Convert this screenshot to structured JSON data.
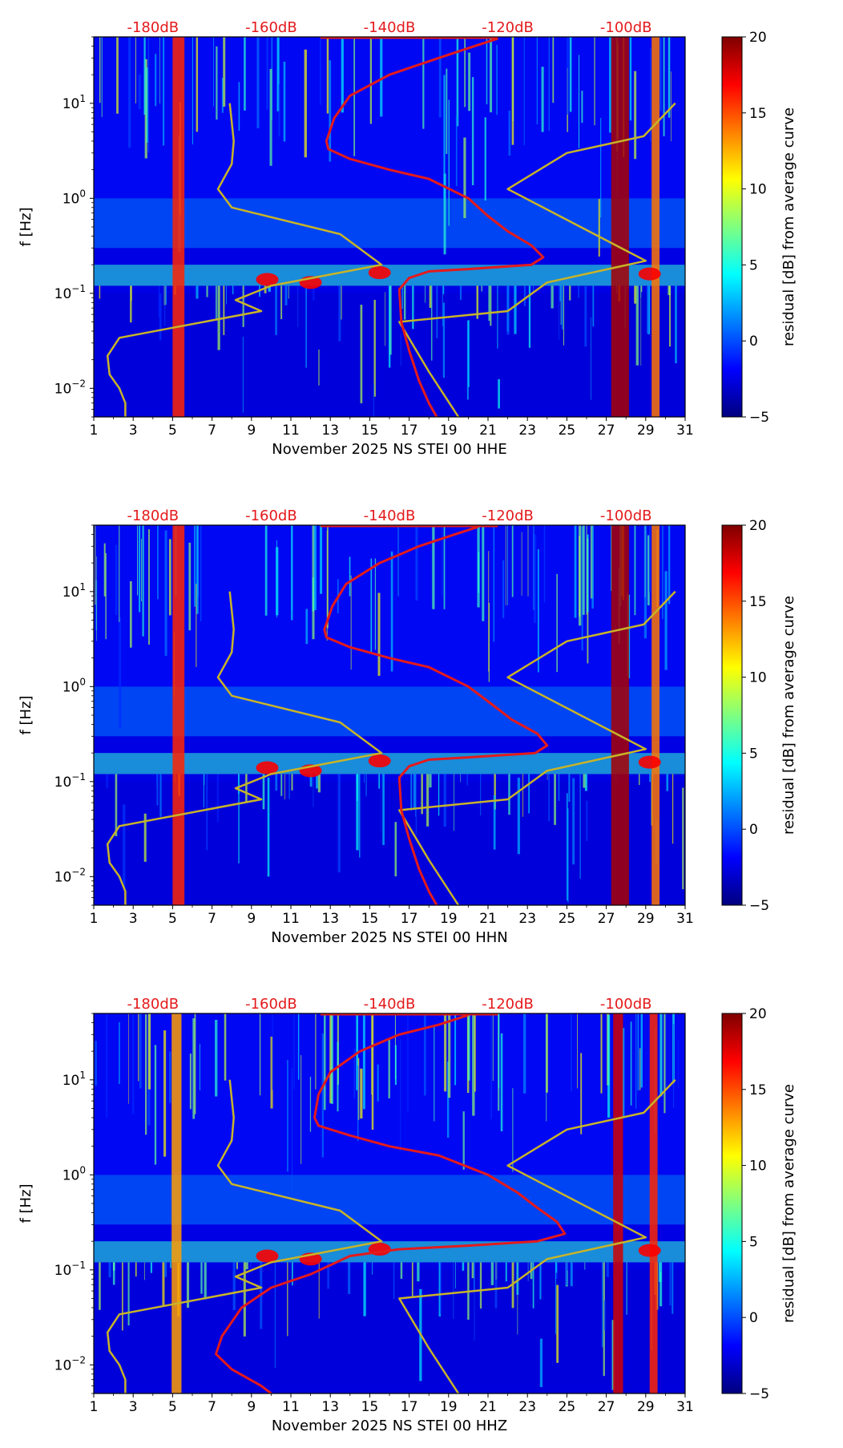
{
  "colors": {
    "noise_model": "#c8b428",
    "median_psd": "#e41a1c",
    "db_labels": "#e41a1c",
    "frame": "#000000",
    "cmap": [
      "#00007f",
      "#0000ff",
      "#007fff",
      "#00ffff",
      "#7fff7f",
      "#ffff00",
      "#ff7f00",
      "#ff0000",
      "#7f0000"
    ]
  },
  "chart_data": [
    {
      "type": "heatmap",
      "title": "",
      "xlabel": "November 2025 NS STEI 00 HHE",
      "ylabel": "f [Hz]",
      "xlim": [
        1,
        31
      ],
      "xticks": [
        1,
        3,
        5,
        7,
        9,
        11,
        13,
        15,
        17,
        19,
        21,
        23,
        25,
        27,
        29,
        31
      ],
      "ylim": [
        0.005,
        50
      ],
      "yscale": "log",
      "yticks": [
        {
          "value": 0.01,
          "base": "10",
          "exp": "−2"
        },
        {
          "value": 0.1,
          "base": "10",
          "exp": "−1"
        },
        {
          "value": 1,
          "base": "10",
          "exp": "0"
        },
        {
          "value": 10,
          "base": "10",
          "exp": "1"
        }
      ],
      "top_labels": [
        {
          "x": 4.0,
          "text": "-180dB"
        },
        {
          "x": 10.0,
          "text": "-160dB"
        },
        {
          "x": 16.0,
          "text": "-140dB"
        },
        {
          "x": 22.0,
          "text": "-120dB"
        },
        {
          "x": 28.0,
          "text": "-100dB"
        }
      ],
      "colorbar": {
        "label": "residual [dB] from average curve",
        "min": -5,
        "max": 20,
        "ticks": [
          -5,
          0,
          5,
          10,
          15,
          20
        ]
      },
      "strong_columns": [
        {
          "x": 5.3,
          "w": 0.6,
          "v": 16
        },
        {
          "x": 27.7,
          "w": 0.9,
          "v": 19
        },
        {
          "x": 29.5,
          "w": 0.4,
          "v": 14
        }
      ],
      "series": [
        {
          "name": "noise model (yellow)",
          "points": [
            [
              7.9,
              10
            ],
            [
              8.1,
              4
            ],
            [
              8.0,
              2.3
            ],
            [
              7.3,
              1.25
            ],
            [
              8.0,
              0.8
            ],
            [
              13.5,
              0.42
            ],
            [
              15.6,
              0.2
            ],
            [
              10.0,
              0.12
            ],
            [
              8.2,
              0.085
            ],
            [
              9.5,
              0.065
            ],
            [
              2.3,
              0.034
            ],
            [
              1.7,
              0.022
            ],
            [
              1.8,
              0.014
            ],
            [
              2.3,
              0.01
            ],
            [
              2.6,
              0.007
            ],
            [
              2.6,
              0.005
            ]
          ]
        },
        {
          "name": "noise model (yellow)",
          "points": [
            [
              30.5,
              10
            ],
            [
              28.9,
              4.5
            ],
            [
              25.0,
              3.0
            ],
            [
              22.0,
              1.25
            ],
            [
              29.0,
              0.22
            ],
            [
              24.0,
              0.13
            ],
            [
              22.0,
              0.065
            ],
            [
              16.5,
              0.05
            ],
            [
              18.0,
              0.015
            ],
            [
              19.5,
              0.005
            ]
          ]
        },
        {
          "name": "median PSD (red)",
          "points": [
            [
              21.5,
              48
            ],
            [
              20.0,
              38
            ],
            [
              18.5,
              30
            ],
            [
              16.0,
              20
            ],
            [
              14.0,
              12
            ],
            [
              13.2,
              7
            ],
            [
              12.8,
              4
            ],
            [
              12.9,
              3.3
            ],
            [
              14.0,
              2.6
            ],
            [
              16.0,
              2.0
            ],
            [
              18.0,
              1.6
            ],
            [
              20.0,
              1.0
            ],
            [
              21.0,
              0.65
            ],
            [
              22.0,
              0.45
            ],
            [
              23.2,
              0.32
            ],
            [
              23.8,
              0.24
            ],
            [
              23.2,
              0.2
            ],
            [
              20.0,
              0.18
            ],
            [
              18.0,
              0.17
            ],
            [
              17.0,
              0.145
            ],
            [
              16.5,
              0.11
            ],
            [
              16.6,
              0.05
            ],
            [
              17.0,
              0.025
            ],
            [
              17.5,
              0.012
            ],
            [
              18.0,
              0.007
            ],
            [
              18.4,
              0.005
            ]
          ]
        }
      ]
    },
    {
      "type": "heatmap",
      "title": "",
      "xlabel": "November 2025 NS STEI 00 HHN",
      "ylabel": "f [Hz]",
      "xlim": [
        1,
        31
      ],
      "xticks": [
        1,
        3,
        5,
        7,
        9,
        11,
        13,
        15,
        17,
        19,
        21,
        23,
        25,
        27,
        29,
        31
      ],
      "ylim": [
        0.005,
        50
      ],
      "yscale": "log",
      "yticks": [
        {
          "value": 0.01,
          "base": "10",
          "exp": "−2"
        },
        {
          "value": 0.1,
          "base": "10",
          "exp": "−1"
        },
        {
          "value": 1,
          "base": "10",
          "exp": "0"
        },
        {
          "value": 10,
          "base": "10",
          "exp": "1"
        }
      ],
      "top_labels": [
        {
          "x": 4.0,
          "text": "-180dB"
        },
        {
          "x": 10.0,
          "text": "-160dB"
        },
        {
          "x": 16.0,
          "text": "-140dB"
        },
        {
          "x": 22.0,
          "text": "-120dB"
        },
        {
          "x": 28.0,
          "text": "-100dB"
        }
      ],
      "colorbar": {
        "label": "residual [dB] from average curve",
        "min": -5,
        "max": 20,
        "ticks": [
          -5,
          0,
          5,
          10,
          15,
          20
        ]
      },
      "strong_columns": [
        {
          "x": 5.3,
          "w": 0.6,
          "v": 16
        },
        {
          "x": 27.7,
          "w": 0.9,
          "v": 19
        },
        {
          "x": 29.5,
          "w": 0.4,
          "v": 14
        }
      ],
      "series": [
        {
          "name": "noise model (yellow)",
          "points": [
            [
              7.9,
              10
            ],
            [
              8.1,
              4
            ],
            [
              8.0,
              2.3
            ],
            [
              7.3,
              1.25
            ],
            [
              8.0,
              0.8
            ],
            [
              13.5,
              0.42
            ],
            [
              15.6,
              0.2
            ],
            [
              10.0,
              0.12
            ],
            [
              8.2,
              0.085
            ],
            [
              9.5,
              0.065
            ],
            [
              2.3,
              0.034
            ],
            [
              1.7,
              0.022
            ],
            [
              1.8,
              0.014
            ],
            [
              2.3,
              0.01
            ],
            [
              2.6,
              0.007
            ],
            [
              2.6,
              0.005
            ]
          ]
        },
        {
          "name": "noise model (yellow)",
          "points": [
            [
              30.5,
              10
            ],
            [
              28.9,
              4.5
            ],
            [
              25.0,
              3.0
            ],
            [
              22.0,
              1.25
            ],
            [
              29.0,
              0.22
            ],
            [
              24.0,
              0.13
            ],
            [
              22.0,
              0.065
            ],
            [
              16.5,
              0.05
            ],
            [
              18.0,
              0.015
            ],
            [
              19.5,
              0.005
            ]
          ]
        },
        {
          "name": "median PSD (red)",
          "points": [
            [
              20.5,
              48
            ],
            [
              19.0,
              38
            ],
            [
              17.5,
              30
            ],
            [
              15.5,
              20
            ],
            [
              13.8,
              12
            ],
            [
              13.1,
              7
            ],
            [
              12.7,
              4
            ],
            [
              12.8,
              3.3
            ],
            [
              14.0,
              2.6
            ],
            [
              16.0,
              2.0
            ],
            [
              18.0,
              1.6
            ],
            [
              20.0,
              1.0
            ],
            [
              21.2,
              0.65
            ],
            [
              22.2,
              0.45
            ],
            [
              23.5,
              0.32
            ],
            [
              24.0,
              0.24
            ],
            [
              23.4,
              0.2
            ],
            [
              20.0,
              0.18
            ],
            [
              18.0,
              0.17
            ],
            [
              17.0,
              0.145
            ],
            [
              16.5,
              0.11
            ],
            [
              16.6,
              0.05
            ],
            [
              17.0,
              0.025
            ],
            [
              17.5,
              0.012
            ],
            [
              18.0,
              0.007
            ],
            [
              18.4,
              0.005
            ]
          ]
        }
      ]
    },
    {
      "type": "heatmap",
      "title": "",
      "xlabel": "November 2025 NS STEI 00 HHZ",
      "ylabel": "f [Hz]",
      "xlim": [
        1,
        31
      ],
      "xticks": [
        1,
        3,
        5,
        7,
        9,
        11,
        13,
        15,
        17,
        19,
        21,
        23,
        25,
        27,
        29,
        31
      ],
      "ylim": [
        0.005,
        50
      ],
      "yscale": "log",
      "yticks": [
        {
          "value": 0.01,
          "base": "10",
          "exp": "−2"
        },
        {
          "value": 0.1,
          "base": "10",
          "exp": "−1"
        },
        {
          "value": 1,
          "base": "10",
          "exp": "0"
        },
        {
          "value": 10,
          "base": "10",
          "exp": "1"
        }
      ],
      "top_labels": [
        {
          "x": 4.0,
          "text": "-180dB"
        },
        {
          "x": 10.0,
          "text": "-160dB"
        },
        {
          "x": 16.0,
          "text": "-140dB"
        },
        {
          "x": 22.0,
          "text": "-120dB"
        },
        {
          "x": 28.0,
          "text": "-100dB"
        }
      ],
      "colorbar": {
        "label": "residual [dB] from average curve",
        "min": -5,
        "max": 20,
        "ticks": [
          -5,
          0,
          5,
          10,
          15,
          20
        ]
      },
      "strong_columns": [
        {
          "x": 5.2,
          "w": 0.5,
          "v": 13
        },
        {
          "x": 27.6,
          "w": 0.5,
          "v": 18
        },
        {
          "x": 29.4,
          "w": 0.4,
          "v": 16
        }
      ],
      "series": [
        {
          "name": "noise model (yellow)",
          "points": [
            [
              7.9,
              10
            ],
            [
              8.1,
              4
            ],
            [
              8.0,
              2.3
            ],
            [
              7.3,
              1.25
            ],
            [
              8.0,
              0.8
            ],
            [
              13.5,
              0.42
            ],
            [
              15.6,
              0.2
            ],
            [
              10.0,
              0.12
            ],
            [
              8.2,
              0.085
            ],
            [
              9.5,
              0.065
            ],
            [
              2.3,
              0.034
            ],
            [
              1.7,
              0.022
            ],
            [
              1.8,
              0.014
            ],
            [
              2.3,
              0.01
            ],
            [
              2.6,
              0.007
            ],
            [
              2.6,
              0.005
            ]
          ]
        },
        {
          "name": "noise model (yellow)",
          "points": [
            [
              30.5,
              10
            ],
            [
              28.9,
              4.5
            ],
            [
              25.0,
              3.0
            ],
            [
              22.0,
              1.25
            ],
            [
              29.0,
              0.22
            ],
            [
              24.0,
              0.13
            ],
            [
              22.0,
              0.065
            ],
            [
              16.5,
              0.05
            ],
            [
              18.0,
              0.015
            ],
            [
              19.5,
              0.005
            ]
          ]
        },
        {
          "name": "median PSD (red)",
          "points": [
            [
              20.0,
              48
            ],
            [
              18.5,
              38
            ],
            [
              16.5,
              30
            ],
            [
              14.5,
              20
            ],
            [
              13.0,
              12
            ],
            [
              12.4,
              7
            ],
            [
              12.2,
              4
            ],
            [
              12.4,
              3.3
            ],
            [
              14.0,
              2.6
            ],
            [
              16.0,
              2.0
            ],
            [
              18.5,
              1.6
            ],
            [
              21.0,
              1.0
            ],
            [
              22.5,
              0.65
            ],
            [
              23.5,
              0.45
            ],
            [
              24.5,
              0.32
            ],
            [
              24.9,
              0.24
            ],
            [
              23.5,
              0.2
            ],
            [
              20.0,
              0.18
            ],
            [
              16.5,
              0.165
            ],
            [
              14.0,
              0.14
            ],
            [
              12.0,
              0.09
            ],
            [
              10.0,
              0.065
            ],
            [
              8.5,
              0.04
            ],
            [
              7.5,
              0.02
            ],
            [
              7.2,
              0.013
            ],
            [
              8.0,
              0.009
            ],
            [
              9.5,
              0.006
            ],
            [
              10.0,
              0.005
            ]
          ]
        }
      ]
    }
  ]
}
